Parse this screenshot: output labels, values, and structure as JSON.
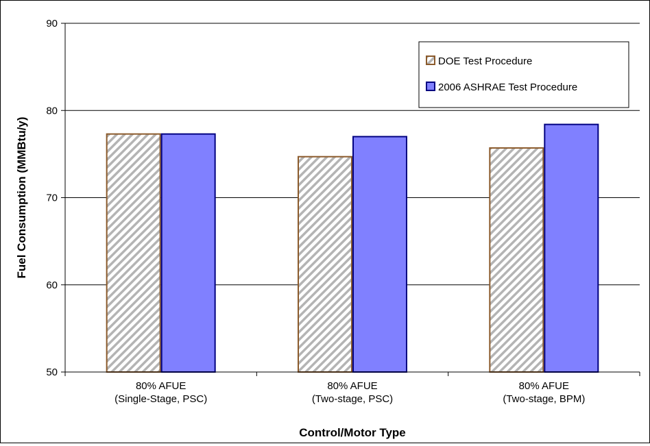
{
  "chart_data": {
    "type": "bar",
    "title": "",
    "xlabel": "Control/Motor Type",
    "ylabel": "Fuel Consumption (MMBtu/y)",
    "ylim": [
      50,
      90
    ],
    "yticks": [
      "50",
      "60",
      "70",
      "80",
      "90"
    ],
    "grid": true,
    "legend_position": "top-right",
    "categories": [
      [
        "80% AFUE",
        "(Single-Stage, PSC)"
      ],
      [
        "80% AFUE",
        "(Two-stage, PSC)"
      ],
      [
        "80% AFUE",
        "(Two-stage, BPM)"
      ]
    ],
    "series": [
      {
        "name": "DOE Test Procedure",
        "values": [
          77.3,
          74.7,
          75.7
        ],
        "fill": "hatch",
        "hatch_color": "#b4b4b4",
        "stroke": "#8b5a2b"
      },
      {
        "name": "2006 ASHRAE Test Procedure",
        "values": [
          77.3,
          77.0,
          78.4
        ],
        "fill": "#8080ff",
        "stroke": "#000080"
      }
    ]
  }
}
